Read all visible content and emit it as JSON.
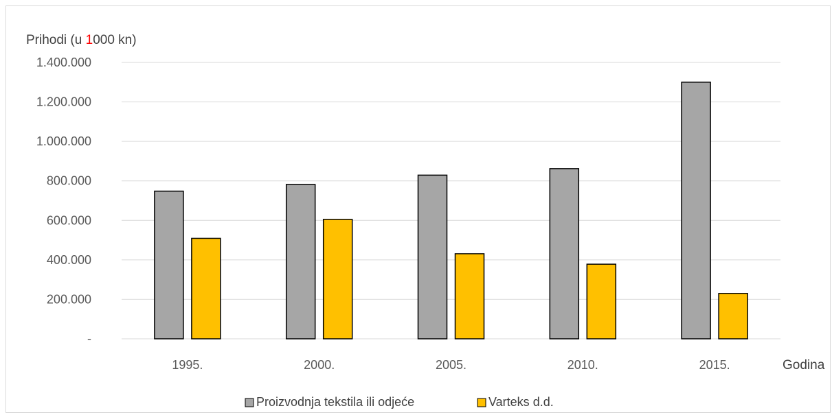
{
  "chart_data": {
    "type": "bar",
    "ylabel_parts": [
      "Prihodi (u ",
      "1",
      "000 kn)"
    ],
    "ylabel_highlight_color": "#ff0000",
    "xlabel": "Godina",
    "categories": [
      "1995.",
      "2000.",
      "2005.",
      "2010.",
      "2015."
    ],
    "ylim": [
      0,
      1400000
    ],
    "y_ticks": [
      {
        "value": 0,
        "label": "-"
      },
      {
        "value": 200000,
        "label": "200.000"
      },
      {
        "value": 400000,
        "label": "400.000"
      },
      {
        "value": 600000,
        "label": "600.000"
      },
      {
        "value": 800000,
        "label": "800.000"
      },
      {
        "value": 1000000,
        "label": "1.000.000"
      },
      {
        "value": 1200000,
        "label": "1.200.000"
      },
      {
        "value": 1400000,
        "label": "1.400.000"
      }
    ],
    "grid": true,
    "legend_position": "bottom",
    "series": [
      {
        "name": "Proizvodnja tekstila ili odjeće",
        "color": "#a6a6a6",
        "values": [
          748000,
          782000,
          829000,
          862000,
          1300000
        ]
      },
      {
        "name": "Varteks d.d.",
        "color": "#ffc000",
        "values": [
          509000,
          605000,
          431000,
          378000,
          230000
        ]
      }
    ]
  }
}
